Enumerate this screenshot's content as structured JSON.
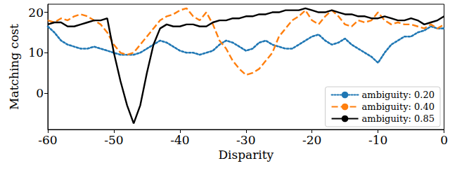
{
  "chart_data": {
    "type": "line",
    "xlabel": "Disparity",
    "ylabel": "Matching cost",
    "x": [
      -60,
      -59,
      -58,
      -57,
      -56,
      -55,
      -54,
      -53,
      -52,
      -51,
      -50,
      -49,
      -48,
      -47,
      -46,
      -45,
      -44,
      -43,
      -42,
      -41,
      -40,
      -39,
      -38,
      -37,
      -36,
      -35,
      -34,
      -33,
      -32,
      -31,
      -30,
      -29,
      -28,
      -27,
      -26,
      -25,
      -24,
      -23,
      -22,
      -21,
      -20,
      -19,
      -18,
      -17,
      -16,
      -15,
      -14,
      -13,
      -12,
      -11,
      -10,
      -9,
      -8,
      -7,
      -6,
      -5,
      -4,
      -3,
      -2,
      -1,
      0
    ],
    "series": [
      {
        "name": "ambiguity: 0.20",
        "color": "#1f77b4",
        "line_style": "dotted",
        "marker": "none",
        "values": [
          16.5,
          15,
          13,
          12,
          11.5,
          11,
          11,
          11.5,
          11,
          10.5,
          10,
          9.5,
          9.5,
          9.5,
          10,
          11,
          12,
          13,
          12.5,
          11.5,
          10.5,
          10,
          10,
          9.5,
          10,
          10.5,
          12,
          13,
          12.5,
          11.5,
          10.5,
          11,
          12.5,
          13,
          12,
          11.5,
          11,
          11,
          12,
          13,
          14,
          14.5,
          13,
          12,
          12.5,
          13.5,
          12,
          11,
          10,
          9,
          7.5,
          10,
          12,
          13,
          14,
          14,
          15,
          15.5,
          16.5,
          16,
          16
        ]
      },
      {
        "name": "ambiguity: 0.40",
        "color": "#ff7f0e",
        "line_style": "dashed",
        "marker": "none",
        "values": [
          18,
          17.5,
          18.5,
          18,
          19,
          19.5,
          19,
          18,
          17,
          15,
          12,
          10,
          9.5,
          10,
          12,
          14,
          16,
          18,
          19,
          19.5,
          20.5,
          21,
          19,
          18,
          20,
          17,
          13,
          11,
          8,
          6,
          4.5,
          5,
          6,
          8,
          10,
          14,
          16,
          18,
          19,
          20.5,
          18,
          17,
          19,
          20.5,
          19,
          17,
          16.5,
          18,
          17.5,
          18,
          20,
          18,
          17,
          17.5,
          17,
          17,
          16.5,
          16,
          17,
          16,
          17
        ]
      },
      {
        "name": "ambiguity: 0.85",
        "color": "#000000",
        "line_style": "solid",
        "marker": "none",
        "values": [
          17,
          17.5,
          17.5,
          16.5,
          16.5,
          17,
          17.5,
          18,
          18,
          18.5,
          10,
          3,
          -3,
          -7.5,
          -3,
          5,
          12,
          16,
          17,
          16.5,
          16.5,
          17,
          17,
          16.5,
          16.5,
          17.5,
          18,
          18,
          18.5,
          18.5,
          19,
          19,
          19.5,
          19.5,
          20,
          20,
          20.5,
          20.5,
          20.5,
          21,
          20.5,
          20,
          20,
          20.5,
          20,
          19.5,
          19.5,
          19,
          19,
          18.5,
          18.5,
          19,
          18.5,
          18,
          18,
          18.5,
          18,
          17,
          17.5,
          18,
          19
        ]
      }
    ],
    "xlim": [
      -60,
      0
    ],
    "xticks": [
      -60,
      -50,
      -40,
      -30,
      -20,
      -10,
      0
    ],
    "ylim": [
      -9,
      22
    ],
    "yticks": [
      0,
      10,
      20
    ],
    "grid": false,
    "legend": "lower right"
  }
}
